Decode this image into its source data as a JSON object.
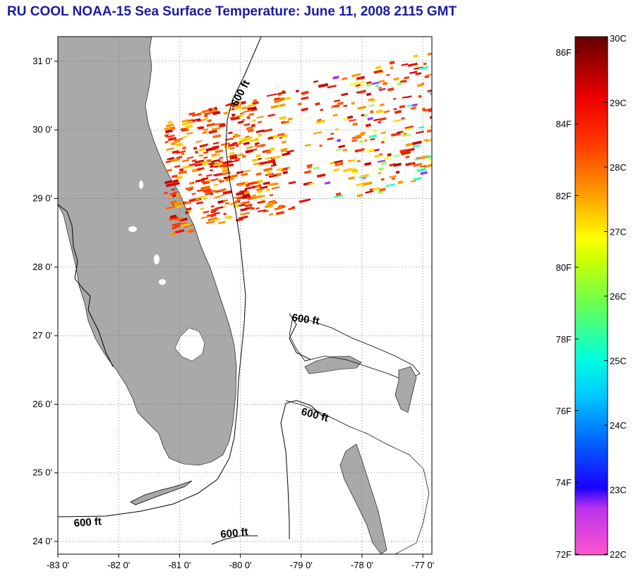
{
  "title": "RU COOL  NOAA-15  Sea Surface Temperature:  June 11, 2008 2115 GMT",
  "map": {
    "lon_range": [
      -83,
      -77
    ],
    "lat_range": [
      23.8,
      31.5
    ],
    "lat_ticks": [
      "24 0'",
      "25 0'",
      "26 0'",
      "27 0'",
      "28 0'",
      "29 0'",
      "30 0'",
      "31 0'"
    ],
    "lon_ticks": [
      "-83 0'",
      "-82 0'",
      "-81 0'",
      "-80 0'",
      "-79 0'",
      "-78 0'",
      "-77 0'"
    ],
    "grid": "dotted",
    "land_color": "#a9a9a9",
    "contour_label": "600 ft",
    "contour_labels": [
      "600 ft",
      "600 ft",
      "600 ft",
      "600 ft",
      "600 ft"
    ]
  },
  "colorbar": {
    "fahrenheit_labels": [
      "86F",
      "84F",
      "82F",
      "80F",
      "78F",
      "76F",
      "74F",
      "72F"
    ],
    "celsius_labels": [
      "30C",
      "29C",
      "28C",
      "27C",
      "26C",
      "25C",
      "24C",
      "23C",
      "22C"
    ],
    "colors": [
      "#ff66cc",
      "#cc22ff",
      "#2200ff",
      "#0099ff",
      "#00ffff",
      "#66ff66",
      "#ffff00",
      "#ff9900",
      "#ff2200",
      "#660000"
    ]
  }
}
